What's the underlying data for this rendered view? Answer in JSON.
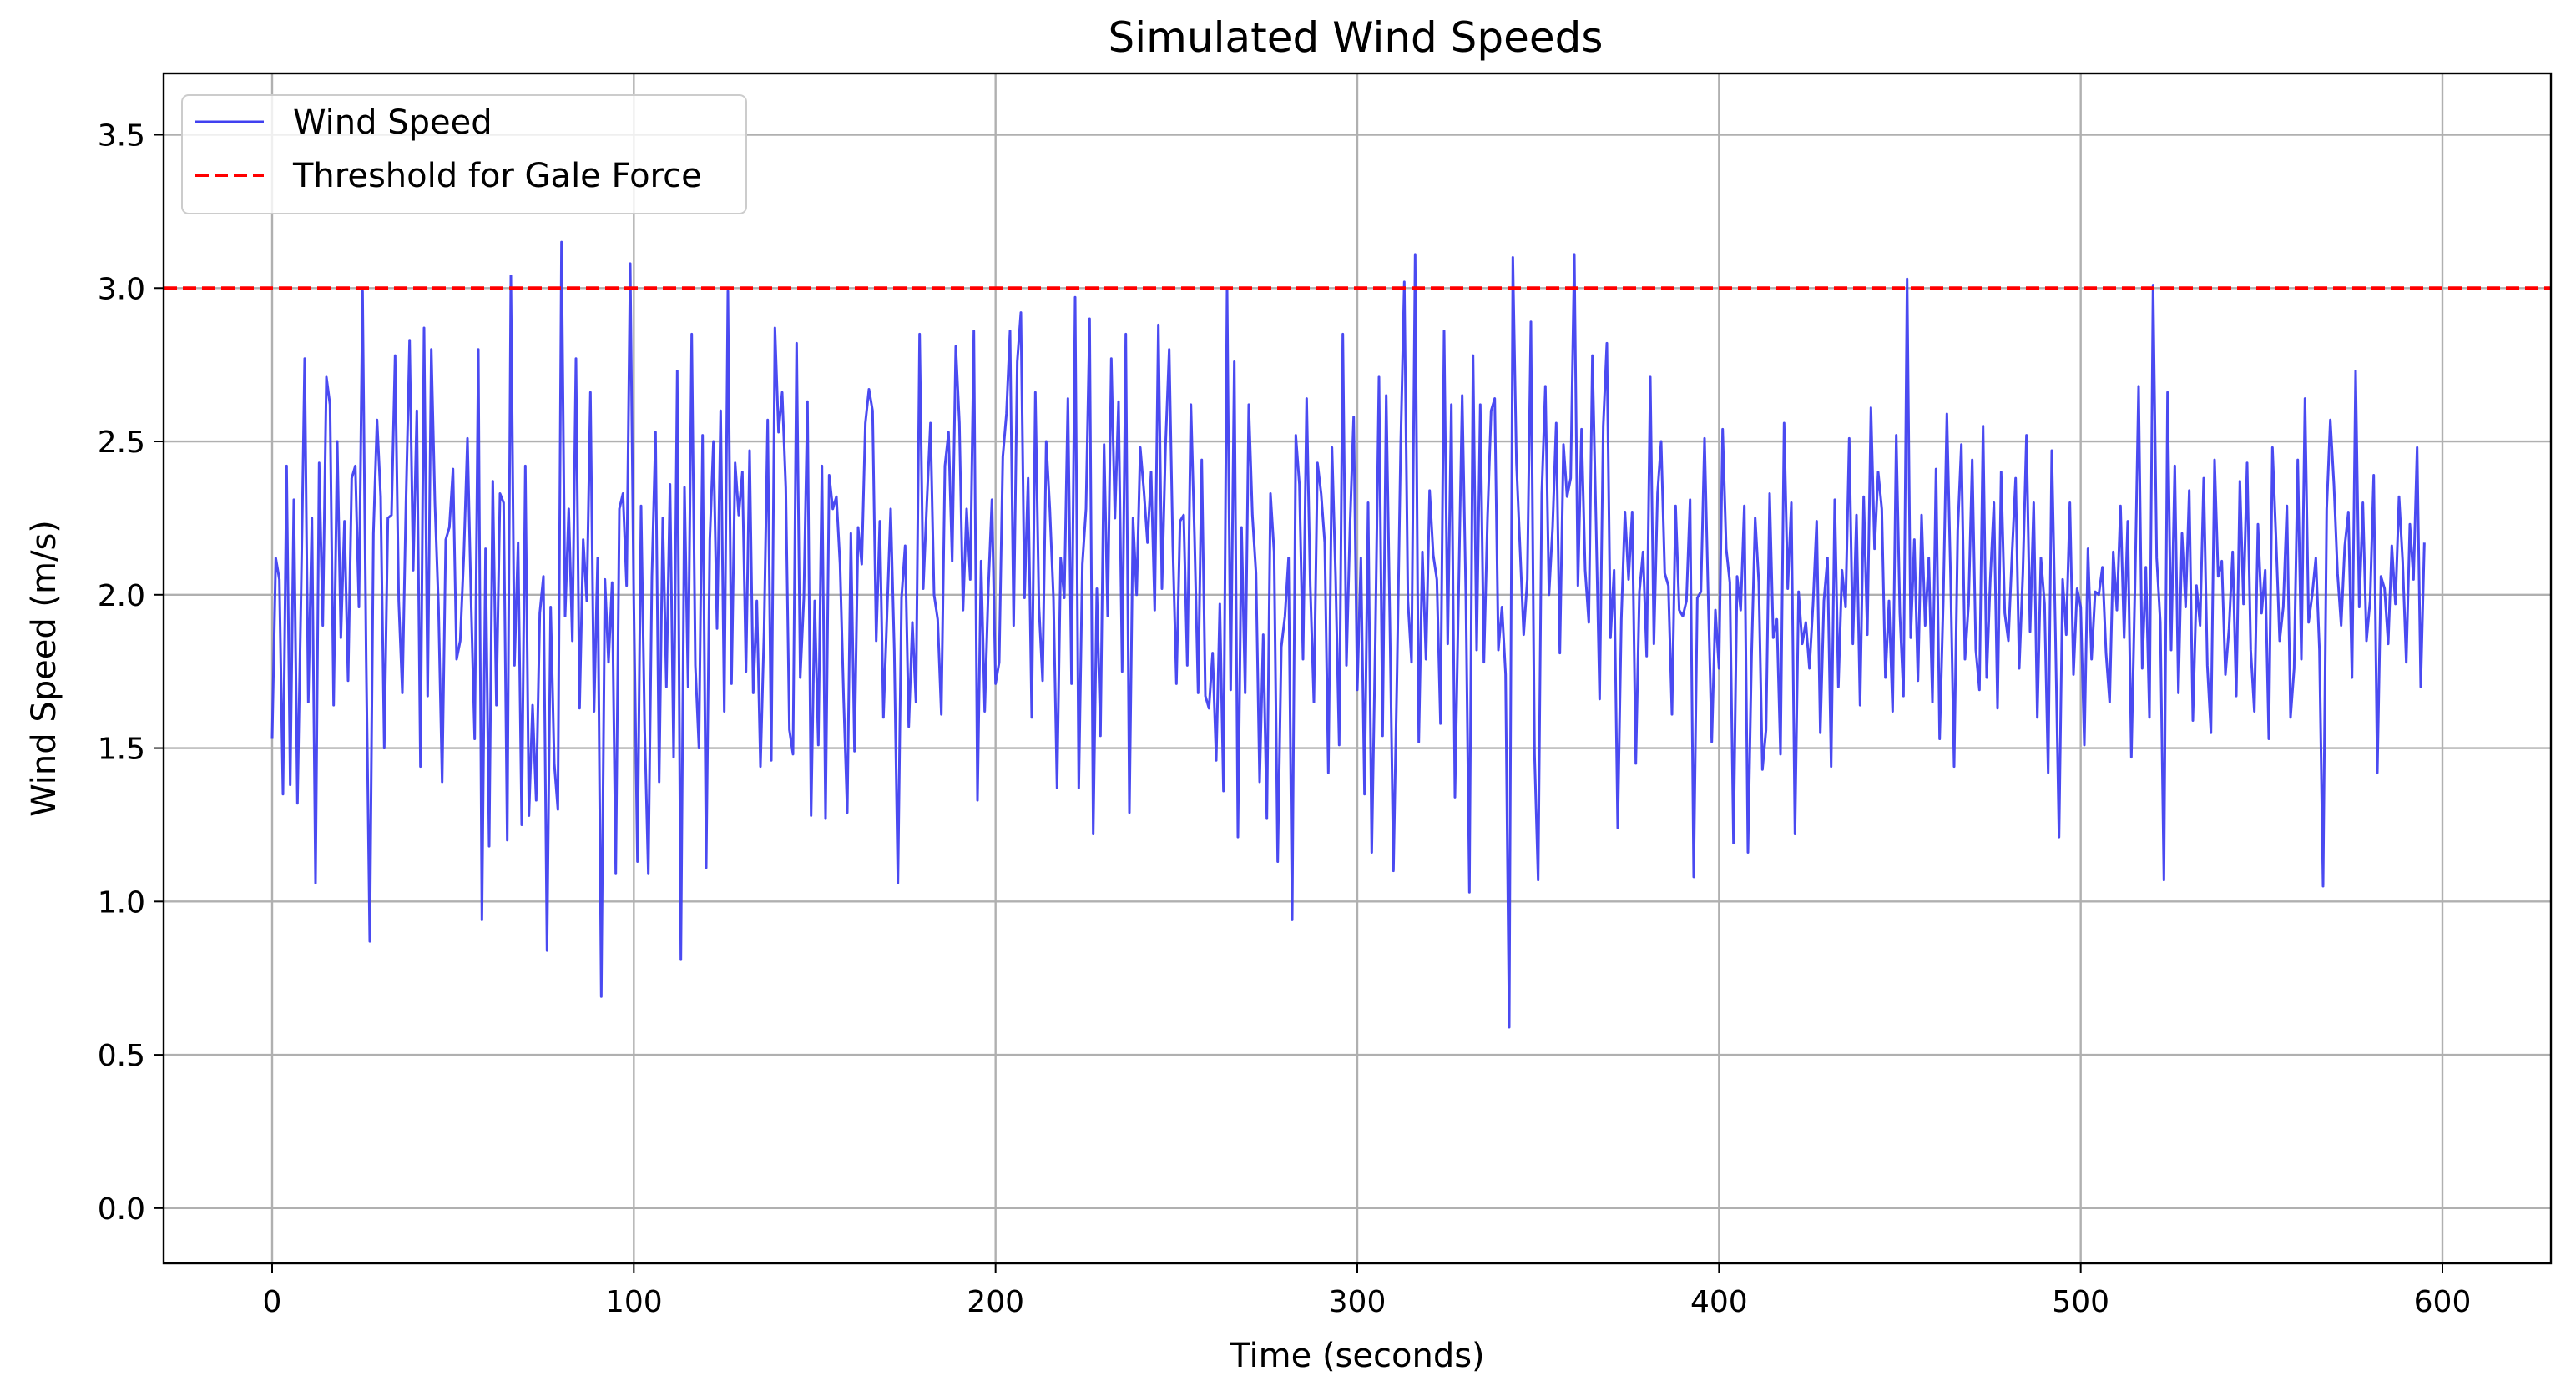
{
  "chart_data": {
    "type": "line",
    "title": "Simulated Wind Speeds",
    "xlabel": "Time (seconds)",
    "ylabel": "Wind Speed (m/s)",
    "xlim": [
      -30,
      630
    ],
    "ylim": [
      -0.18,
      3.7
    ],
    "xticks": [
      0,
      100,
      200,
      300,
      400,
      500,
      600
    ],
    "yticks": [
      0.0,
      0.5,
      1.0,
      1.5,
      2.0,
      2.5,
      3.0,
      3.5
    ],
    "xtick_labels": [
      "0",
      "100",
      "200",
      "300",
      "400",
      "500",
      "600"
    ],
    "ytick_labels": [
      "0.0",
      "0.5",
      "1.0",
      "1.5",
      "2.0",
      "2.5",
      "3.0",
      "3.5"
    ],
    "grid": true,
    "legend_position": "upper-left",
    "series": [
      {
        "name": "Wind Speed",
        "color": "#4040f0",
        "style": "solid",
        "x_start": 0,
        "x_step": 1,
        "values": [
          1.53,
          2.12,
          2.05,
          1.35,
          2.42,
          1.38,
          2.31,
          1.32,
          2.0,
          2.77,
          1.65,
          2.25,
          1.06,
          2.43,
          1.9,
          2.71,
          2.62,
          1.64,
          2.5,
          1.86,
          2.24,
          1.72,
          2.38,
          2.42,
          1.96,
          2.99,
          1.79,
          0.87,
          2.2,
          2.57,
          2.32,
          1.5,
          2.25,
          2.26,
          2.78,
          1.98,
          1.68,
          2.3,
          2.83,
          2.08,
          2.6,
          1.44,
          2.87,
          1.67,
          2.8,
          2.3,
          1.96,
          1.39,
          2.18,
          2.22,
          2.41,
          1.79,
          1.85,
          2.13,
          2.51,
          1.98,
          1.53,
          2.8,
          0.94,
          2.15,
          1.18,
          2.37,
          1.64,
          2.33,
          2.3,
          1.2,
          3.04,
          1.77,
          2.17,
          1.25,
          2.42,
          1.28,
          1.64,
          1.33,
          1.94,
          2.06,
          0.84,
          1.96,
          1.45,
          1.3,
          3.15,
          1.93,
          2.28,
          1.85,
          2.77,
          1.63,
          2.18,
          1.98,
          2.66,
          1.62,
          2.12,
          0.69,
          2.05,
          1.78,
          2.04,
          1.09,
          2.28,
          2.33,
          2.03,
          3.08,
          1.97,
          1.13,
          2.29,
          1.56,
          1.09,
          2.06,
          2.53,
          1.39,
          2.25,
          1.7,
          2.36,
          1.47,
          2.73,
          0.81,
          2.35,
          1.7,
          2.85,
          1.77,
          1.5,
          2.52,
          1.11,
          2.18,
          2.5,
          1.89,
          2.6,
          1.62,
          2.99,
          1.71,
          2.43,
          2.26,
          2.4,
          1.75,
          2.47,
          1.68,
          1.98,
          1.44,
          1.88,
          2.57,
          1.46,
          2.87,
          2.53,
          2.66,
          2.35,
          1.56,
          1.48,
          2.82,
          1.73,
          1.99,
          2.63,
          1.28,
          1.98,
          1.51,
          2.42,
          1.27,
          2.39,
          2.28,
          2.32,
          2.1,
          1.66,
          1.29,
          2.2,
          1.49,
          2.22,
          2.1,
          2.56,
          2.67,
          2.6,
          1.85,
          2.24,
          1.6,
          1.94,
          2.28,
          1.82,
          1.06,
          1.99,
          2.16,
          1.57,
          1.91,
          1.65,
          2.85,
          2.02,
          2.3,
          2.56,
          2.0,
          1.92,
          1.61,
          2.42,
          2.53,
          2.11,
          2.81,
          2.56,
          1.95,
          2.28,
          2.05,
          2.86,
          1.33,
          2.11,
          1.62,
          2.02,
          2.31,
          1.71,
          1.78,
          2.45,
          2.59,
          2.86,
          1.9,
          2.76,
          2.92,
          1.99,
          2.38,
          1.6,
          2.66,
          1.96,
          1.72,
          2.5,
          2.28,
          1.99,
          1.37,
          2.12,
          1.99,
          2.64,
          1.71,
          2.97,
          1.37,
          2.1,
          2.28,
          2.9,
          1.22,
          2.02,
          1.54,
          2.49,
          1.93,
          2.77,
          2.25,
          2.63,
          1.75,
          2.85,
          1.29,
          2.25,
          2.0,
          2.48,
          2.34,
          2.17,
          2.4,
          1.95,
          2.88,
          2.02,
          2.49,
          2.8,
          2.16,
          1.71,
          2.24,
          2.26,
          1.77,
          2.62,
          2.19,
          1.68,
          2.44,
          1.67,
          1.63,
          1.81,
          1.46,
          1.97,
          1.36,
          3.0,
          1.69,
          2.76,
          1.21,
          2.22,
          1.68,
          2.62,
          2.26,
          2.07,
          1.39,
          1.87,
          1.27,
          2.33,
          2.14,
          1.13,
          1.83,
          1.93,
          2.12,
          0.94,
          2.52,
          2.36,
          1.79,
          2.64,
          2.03,
          1.65,
          2.43,
          2.33,
          2.17,
          1.42,
          2.48,
          2.06,
          1.51,
          2.85,
          1.77,
          2.23,
          2.58,
          1.69,
          2.12,
          1.35,
          2.3,
          1.16,
          1.86,
          2.71,
          1.54,
          2.65,
          1.92,
          1.1,
          1.75,
          2.49,
          3.02,
          1.98,
          1.78,
          3.11,
          1.52,
          2.14,
          1.79,
          2.34,
          2.13,
          2.05,
          1.58,
          2.86,
          1.84,
          2.62,
          1.34,
          2.0,
          2.65,
          2.01,
          1.03,
          2.78,
          1.82,
          2.62,
          1.78,
          2.25,
          2.6,
          2.64,
          1.82,
          1.96,
          1.74,
          0.59,
          3.1,
          2.43,
          2.15,
          1.87,
          2.05,
          2.89,
          1.48,
          1.07,
          2.33,
          2.68,
          2.0,
          2.22,
          2.56,
          1.81,
          2.49,
          2.32,
          2.38,
          3.11,
          2.03,
          2.54,
          2.08,
          1.91,
          2.78,
          2.24,
          1.66,
          2.55,
          2.82,
          1.86,
          2.08,
          1.24,
          1.92,
          2.27,
          2.05,
          2.27,
          1.45,
          2.01,
          2.14,
          1.8,
          2.71,
          1.84,
          2.33,
          2.5,
          2.07,
          2.03,
          1.61,
          2.29,
          1.95,
          1.93,
          1.98,
          2.31,
          1.08,
          1.99,
          2.01,
          2.51,
          2.0,
          1.52,
          1.95,
          1.76,
          2.54,
          2.15,
          2.04,
          1.19,
          2.06,
          1.95,
          2.29,
          1.16,
          1.8,
          2.25,
          2.04,
          1.43,
          1.56,
          2.33,
          1.86,
          1.92,
          1.48,
          2.56,
          2.02,
          2.3,
          1.22,
          2.01,
          1.84,
          1.91,
          1.76,
          1.97,
          2.24,
          1.55,
          1.98,
          2.12,
          1.44,
          2.31,
          1.7,
          2.08,
          1.96,
          2.51,
          1.84,
          2.26,
          1.64,
          2.32,
          1.87,
          2.61,
          2.15,
          2.4,
          2.28,
          1.73,
          1.98,
          1.62,
          2.52,
          1.94,
          1.67,
          3.03,
          1.86,
          2.18,
          1.72,
          2.26,
          1.9,
          2.12,
          1.65,
          2.41,
          1.53,
          1.98,
          2.59,
          2.07,
          1.44,
          2.21,
          2.49,
          1.79,
          1.97,
          2.44,
          1.82,
          1.69,
          2.55,
          1.73,
          2.05,
          2.3,
          1.63,
          2.4,
          1.94,
          1.85,
          2.13,
          2.38,
          1.76,
          2.07,
          2.52,
          1.88,
          2.3,
          1.6,
          2.12,
          1.97,
          1.42,
          2.47,
          1.88,
          1.21,
          2.05,
          1.87,
          2.3,
          1.74,
          2.02,
          1.96,
          1.51,
          2.15,
          1.79,
          2.01,
          2.0,
          2.09,
          1.81,
          1.65,
          2.14,
          1.95,
          2.29,
          1.86,
          2.24,
          1.47,
          2.03,
          2.68,
          1.76,
          2.09,
          1.6,
          3.01,
          2.12,
          1.91,
          1.07,
          2.66,
          1.82,
          2.42,
          1.68,
          2.2,
          1.96,
          2.34,
          1.59,
          2.03,
          1.9,
          2.38,
          1.77,
          1.55,
          2.44,
          2.06,
          2.11,
          1.74,
          1.89,
          2.14,
          1.67,
          2.37,
          1.97,
          2.43,
          1.82,
          1.62,
          2.23,
          1.94,
          2.08,
          1.53,
          2.48,
          2.18,
          1.85,
          1.96,
          2.29,
          1.6,
          1.76,
          2.44,
          1.79,
          2.64,
          1.91,
          2.0,
          2.12,
          1.82,
          1.05,
          2.28,
          2.57,
          2.36,
          2.07,
          1.9,
          2.16,
          2.27,
          1.73,
          2.73,
          1.96,
          2.3,
          1.85,
          1.98,
          2.39,
          1.42,
          2.06,
          2.02,
          1.84,
          2.16,
          1.97,
          2.32,
          2.11,
          1.78,
          2.23,
          2.05,
          2.48,
          1.7,
          2.17
        ]
      },
      {
        "name": "Threshold for Gale Force",
        "color": "#ff0000",
        "style": "dashed",
        "value": 3.0
      }
    ]
  }
}
